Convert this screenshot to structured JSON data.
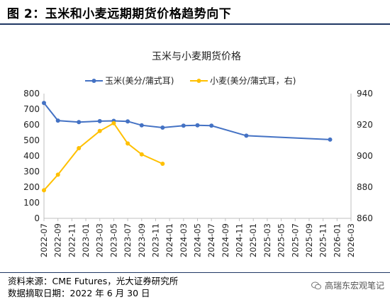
{
  "figure": {
    "title": "图 2：玉米和小麦远期期货价格趋势向下"
  },
  "footer": {
    "source": "资料来源：CME Futures，光大证券研究所",
    "date": "数据摘取日期：2022 年 6 月 30 日"
  },
  "watermark": {
    "text": "高瑞东宏观笔记"
  },
  "colors": {
    "corn": "#4472c4",
    "wheat": "#ffc000",
    "axis": "#bfbfbf",
    "rule": "#1f3864"
  },
  "chart_data": {
    "type": "line",
    "title": "玉米与小麦期货价格",
    "legend_position": "top",
    "grid": false,
    "categories": [
      "2022-07",
      "2022-09",
      "2022-11",
      "2023-01",
      "2023-03",
      "2023-05",
      "2023-07",
      "2023-09",
      "2023-11",
      "2024-01",
      "2024-03",
      "2024-05",
      "2024-07",
      "2024-09",
      "2024-11",
      "2025-01",
      "2025-03",
      "2025-05",
      "2025-07",
      "2025-09",
      "2025-11",
      "2026-01",
      "2026-03"
    ],
    "y_left": {
      "min": 0,
      "max": 800,
      "ticks": [
        "0",
        "100",
        "200",
        "300",
        "400",
        "500",
        "600",
        "700",
        "800"
      ]
    },
    "y_right": {
      "min": 860,
      "max": 940,
      "ticks": [
        "860",
        "880",
        "900",
        "920",
        "940"
      ]
    },
    "series": [
      {
        "name": "玉米(美分/蒲式耳)",
        "axis": "left",
        "points": [
          {
            "x": "2022-07",
            "y": 740
          },
          {
            "x": "2022-09",
            "y": 627
          },
          {
            "x": "2022-12",
            "y": 617
          },
          {
            "x": "2023-03",
            "y": 623
          },
          {
            "x": "2023-05",
            "y": 625
          },
          {
            "x": "2023-07",
            "y": 622
          },
          {
            "x": "2023-09",
            "y": 597
          },
          {
            "x": "2023-12",
            "y": 582
          },
          {
            "x": "2024-03",
            "y": 594
          },
          {
            "x": "2024-05",
            "y": 597
          },
          {
            "x": "2024-07",
            "y": 594
          },
          {
            "x": "2024-12",
            "y": 530
          },
          {
            "x": "2025-12",
            "y": 505
          }
        ]
      },
      {
        "name": "小麦(美分/蒲式耳，右)",
        "axis": "right",
        "points": [
          {
            "x": "2022-07",
            "y": 878
          },
          {
            "x": "2022-09",
            "y": 888
          },
          {
            "x": "2022-12",
            "y": 905
          },
          {
            "x": "2023-03",
            "y": 916
          },
          {
            "x": "2023-05",
            "y": 921
          },
          {
            "x": "2023-07",
            "y": 908
          },
          {
            "x": "2023-09",
            "y": 901
          },
          {
            "x": "2023-12",
            "y": 895
          }
        ]
      }
    ]
  }
}
